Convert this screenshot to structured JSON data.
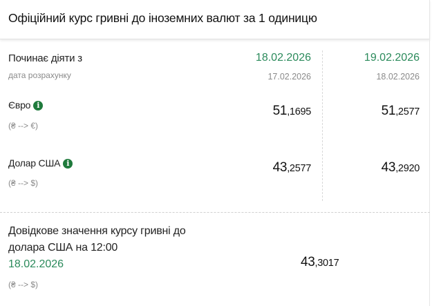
{
  "title": "Офіційний курс гривні до іноземних валют за 1 одиницю",
  "effective_label": "Починає діяти з",
  "calc_label": "дата розрахунку",
  "columns": [
    {
      "effective_date": "18.02.2026",
      "calc_date": "17.02.2026"
    },
    {
      "effective_date": "19.02.2026",
      "calc_date": "18.02.2026"
    }
  ],
  "rows": [
    {
      "name": "Євро",
      "direction": "(₴ --> €)",
      "values": [
        {
          "int": "51",
          "dec": ",1695"
        },
        {
          "int": "51",
          "dec": ",2577"
        }
      ]
    },
    {
      "name": "Долар США",
      "direction": "(₴ --> $)",
      "values": [
        {
          "int": "43",
          "dec": ",2577"
        },
        {
          "int": "43",
          "dec": ",2920"
        }
      ]
    }
  ],
  "reference": {
    "line1": "Довідкове значення курсу гривні до",
    "line2": "долара США на 12:00",
    "date": "18.02.2026",
    "direction": "(₴ --> $)",
    "value": {
      "int": "43",
      "dec": ",3017"
    }
  },
  "info_icon": "i",
  "colors": {
    "accent_green": "#2b8a5b",
    "icon_green": "#1f7a3c"
  }
}
